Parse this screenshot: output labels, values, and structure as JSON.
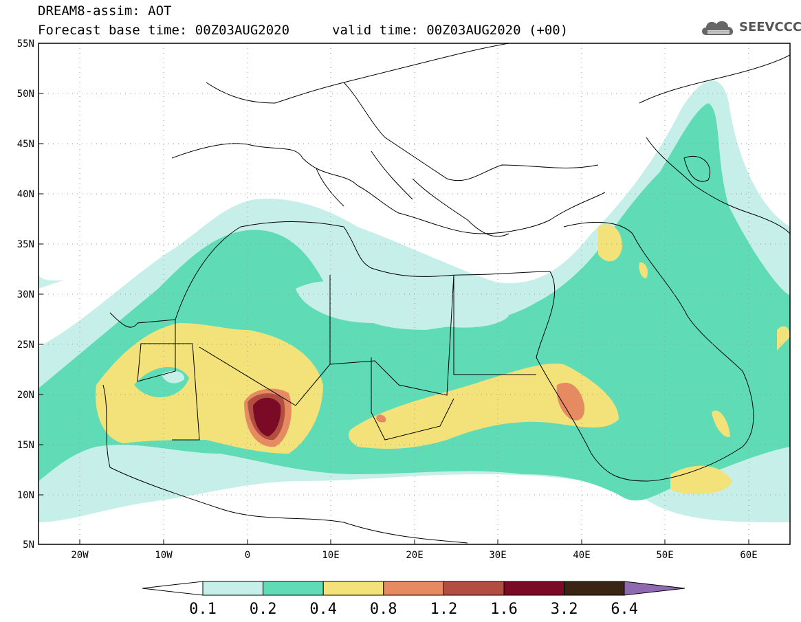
{
  "header": {
    "title_line1": "DREAM8-assim: AOT",
    "title_line2": "Forecast base time: 00Z03AUG2020",
    "valid_time": "valid time: 00Z03AUG2020 (+00)",
    "logo_text": "SEEVCCC"
  },
  "map": {
    "lat_labels": [
      "55N",
      "50N",
      "45N",
      "40N",
      "35N",
      "30N",
      "25N",
      "20N",
      "15N",
      "10N",
      "5N"
    ],
    "lon_labels": [
      "20W",
      "10W",
      "0",
      "10E",
      "20E",
      "30E",
      "40E",
      "50E",
      "60E"
    ],
    "lat_range": [
      5,
      55
    ],
    "lon_range": [
      -25,
      65
    ]
  },
  "colorbar": {
    "labels": [
      "0.1",
      "0.2",
      "0.4",
      "0.8",
      "1.2",
      "1.6",
      "3.2",
      "6.4"
    ],
    "colors": [
      "#c7efe9",
      "#5fdcb6",
      "#f3e27a",
      "#e68a62",
      "#b24d42",
      "#7a0a25",
      "#3a2413",
      "#8f6ab0"
    ]
  }
}
